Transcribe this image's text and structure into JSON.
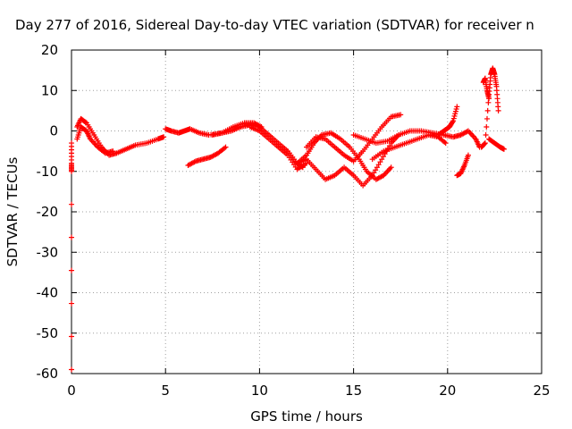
{
  "chart_data": {
    "type": "scatter",
    "title": "Day 277 of 2016, Sidereal Day-to-day VTEC variation (SDTVAR) for receiver n",
    "xlabel": "GPS time / hours",
    "ylabel": "SDTVAR / TECUs",
    "xlim": [
      0,
      25
    ],
    "ylim": [
      -60,
      20
    ],
    "x_ticks": [
      0,
      5,
      10,
      15,
      20,
      25
    ],
    "y_ticks": [
      -60,
      -50,
      -40,
      -30,
      -20,
      -10,
      0,
      10,
      20
    ],
    "x_tick_labels": [
      "0",
      "5",
      "10",
      "15",
      "20",
      "25"
    ],
    "y_tick_labels": [
      "-60",
      "-50",
      "-40",
      "-30",
      "-20",
      "-10",
      "0",
      "10",
      "20"
    ],
    "grid": true,
    "marker": "+",
    "series": [
      {
        "name": "SDTVAR",
        "color": "#ff0000",
        "tracks": [
          {
            "x": [
              0.3,
              0.5,
              0.8,
              1.2,
              1.6,
              2.0,
              2.4,
              2.9,
              3.4,
              4.0,
              4.6,
              4.9
            ],
            "y": [
              1.0,
              3.0,
              2.0,
              -1.0,
              -4.0,
              -6.0,
              -5.5,
              -4.5,
              -3.5,
              -3.0,
              -2.0,
              -1.5
            ]
          },
          {
            "x": [
              0.3,
              0.5,
              0.8,
              1.0,
              1.4,
              1.8,
              2.2
            ],
            "y": [
              -2.0,
              1.0,
              0.0,
              -2.0,
              -4.0,
              -5.5,
              -5.0
            ]
          },
          {
            "x": [
              5.0,
              5.3,
              5.7,
              6.0,
              6.3,
              6.8,
              7.3,
              8.0,
              8.6,
              9.2,
              9.7,
              10.1
            ],
            "y": [
              0.5,
              0.0,
              -0.5,
              0.0,
              0.5,
              -0.5,
              -1.0,
              -0.5,
              1.0,
              2.0,
              2.0,
              1.0
            ]
          },
          {
            "x": [
              6.2,
              6.6,
              7.0,
              7.4,
              7.8,
              8.2
            ],
            "y": [
              -8.5,
              -7.5,
              -7.0,
              -6.5,
              -5.5,
              -4.0
            ]
          },
          {
            "x": [
              7.5,
              8.0,
              8.5,
              9.0,
              9.5,
              10.0,
              10.5,
              11.0,
              11.5,
              12.0,
              12.3
            ],
            "y": [
              -1.0,
              -0.5,
              0.0,
              1.0,
              1.5,
              1.0,
              -1.0,
              -3.0,
              -5.0,
              -8.0,
              -9.0
            ]
          },
          {
            "x": [
              9.5,
              10.0,
              10.5,
              11.0,
              11.5,
              12.0,
              12.5
            ],
            "y": [
              1.0,
              0.0,
              -2.0,
              -4.0,
              -6.0,
              -9.5,
              -8.0
            ]
          },
          {
            "x": [
              11.5,
              12.0,
              12.5,
              12.9,
              13.3,
              13.8,
              14.3,
              14.8,
              15.3,
              15.7,
              16.2,
              16.6,
              17.0
            ],
            "y": [
              -5.0,
              -8.0,
              -6.0,
              -3.0,
              -1.0,
              -0.5,
              -2.0,
              -4.0,
              -7.0,
              -10.0,
              -12.0,
              -11.0,
              -9.0
            ]
          },
          {
            "x": [
              12.0,
              12.5,
              13.0,
              13.5,
              14.0,
              14.5,
              15.0,
              15.5,
              16.0,
              16.5,
              17.0,
              17.4
            ],
            "y": [
              -8.0,
              -7.0,
              -9.5,
              -12.0,
              -11.0,
              -9.0,
              -11.0,
              -13.5,
              -11.0,
              -7.0,
              -3.0,
              -1.0
            ]
          },
          {
            "x": [
              12.5,
              13.0,
              13.5,
              14.0,
              14.5,
              15.0,
              15.5,
              16.0,
              16.5,
              17.0,
              17.5
            ],
            "y": [
              -4.0,
              -1.5,
              -2.0,
              -4.0,
              -6.0,
              -7.5,
              -5.0,
              -2.0,
              1.0,
              3.5,
              4.0
            ]
          },
          {
            "x": [
              15.0,
              15.6,
              16.2,
              16.8,
              17.4,
              18.0,
              18.6,
              19.2,
              19.8,
              20.3,
              20.7,
              21.1,
              21.5,
              21.7
            ],
            "y": [
              -1.0,
              -2.0,
              -3.0,
              -2.5,
              -1.0,
              0.0,
              0.0,
              -0.5,
              -1.0,
              -1.5,
              -1.0,
              0.0,
              -2.0,
              -4.0
            ]
          },
          {
            "x": [
              16.0,
              16.6,
              17.2,
              17.8,
              18.4,
              19.0,
              19.5,
              19.9
            ],
            "y": [
              -7.0,
              -5.0,
              -4.0,
              -3.0,
              -2.0,
              -1.0,
              -1.5,
              -3.0
            ]
          },
          {
            "x": [
              19.5,
              19.8,
              20.1,
              20.3,
              20.5
            ],
            "y": [
              -1.0,
              0.0,
              1.0,
              2.5,
              6.0
            ]
          },
          {
            "x": [
              20.5,
              20.7,
              20.9,
              21.1
            ],
            "y": [
              -11.0,
              -10.5,
              -8.5,
              -6.0
            ]
          },
          {
            "x": [
              21.8,
              22.0,
              22.2,
              22.3,
              22.4,
              22.5,
              22.6,
              22.7
            ],
            "y": [
              -4.0,
              -3.0,
              9.0,
              14.0,
              15.5,
              14.0,
              11.0,
              5.0
            ]
          },
          {
            "x": [
              21.9,
              22.0,
              22.1,
              22.2
            ],
            "y": [
              12.0,
              13.0,
              10.0,
              8.0
            ]
          },
          {
            "x": [
              22.2,
              22.5,
              22.8,
              23.0
            ],
            "y": [
              -2.0,
              -3.0,
              -4.0,
              -4.5
            ]
          },
          {
            "x": [
              0.0,
              0.0,
              0.0,
              0.0
            ],
            "y": [
              -3.0,
              -8.0,
              -10.0,
              -59.0
            ]
          }
        ]
      }
    ]
  }
}
